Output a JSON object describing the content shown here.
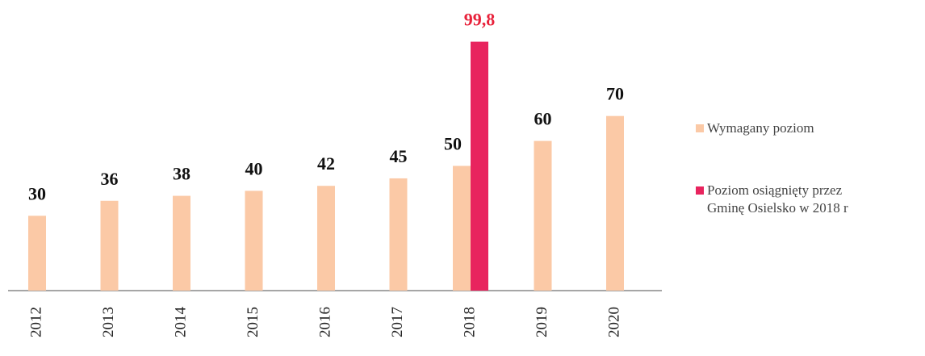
{
  "chart_data": {
    "type": "bar",
    "categories": [
      "2012",
      "2013",
      "2014",
      "2015",
      "2016",
      "2017",
      "2018",
      "2019",
      "2020"
    ],
    "series": [
      {
        "name": "Wymagany poziom",
        "color": "#fbc9a6",
        "values": [
          30,
          36,
          38,
          40,
          42,
          45,
          50,
          60,
          70
        ]
      },
      {
        "name": "Poziom osiągnięty przez Gminę Osielsko w 2018 r",
        "color": "#e8245e",
        "label_color": "#e8213a",
        "values": [
          null,
          null,
          null,
          null,
          null,
          null,
          99.8,
          null,
          null
        ],
        "value_labels": [
          null,
          null,
          null,
          null,
          null,
          null,
          "99,8",
          null,
          null
        ]
      }
    ],
    "legend": "right"
  }
}
